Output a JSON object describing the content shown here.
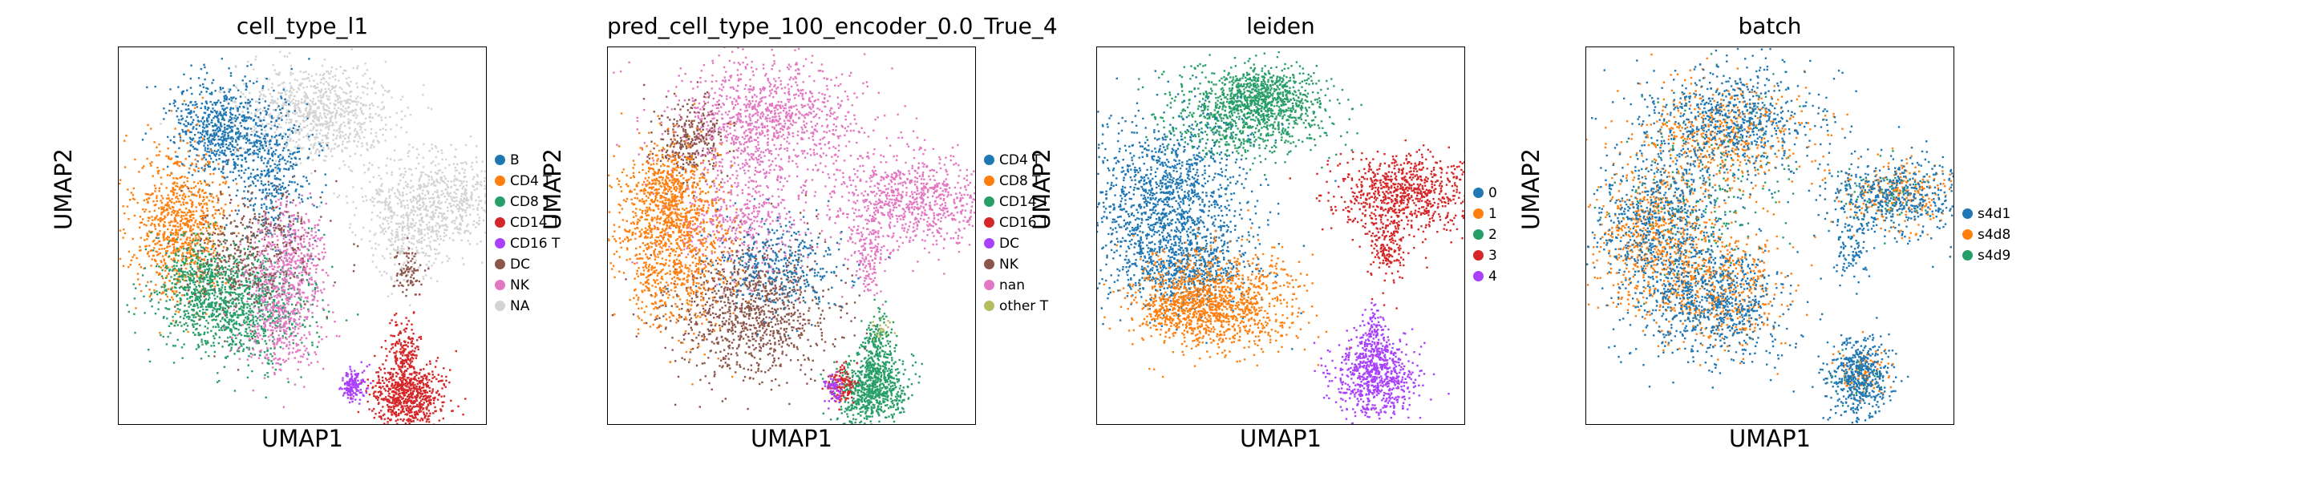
{
  "chart_data": [
    {
      "type": "scatter",
      "title": "cell_type_l1",
      "xlabel": "UMAP1",
      "ylabel": "UMAP2",
      "grid": false,
      "legend_placement": "right",
      "legend": [
        {
          "label": "B",
          "color": "#1f77b4"
        },
        {
          "label": "CD4 T",
          "color": "#ff7f0e"
        },
        {
          "label": "CD8 T",
          "color": "#279e68"
        },
        {
          "label": "CD14 T",
          "color": "#d62728"
        },
        {
          "label": "CD16 T",
          "color": "#aa40fc"
        },
        {
          "label": "DC",
          "color": "#8c564b"
        },
        {
          "label": "NK",
          "color": "#e377c2"
        },
        {
          "label": "NA",
          "color": "#d3d3d3"
        }
      ]
    },
    {
      "type": "scatter",
      "title": "pred_cell_type_100_encoder_0.0_True_4",
      "xlabel": "UMAP1",
      "ylabel": "UMAP2",
      "grid": false,
      "legend_placement": "right",
      "legend": [
        {
          "label": "CD4 T",
          "color": "#1f77b4"
        },
        {
          "label": "CD8 T",
          "color": "#ff7f0e"
        },
        {
          "label": "CD14 T",
          "color": "#279e68"
        },
        {
          "label": "CD16 T",
          "color": "#d62728"
        },
        {
          "label": "DC",
          "color": "#aa40fc"
        },
        {
          "label": "NK",
          "color": "#8c564b"
        },
        {
          "label": "nan",
          "color": "#e377c2"
        },
        {
          "label": "other T",
          "color": "#b5bd61"
        }
      ]
    },
    {
      "type": "scatter",
      "title": "leiden",
      "xlabel": "UMAP1",
      "ylabel": "UMAP2",
      "grid": false,
      "legend_placement": "right",
      "legend": [
        {
          "label": "0",
          "color": "#1f77b4"
        },
        {
          "label": "1",
          "color": "#ff7f0e"
        },
        {
          "label": "2",
          "color": "#279e68"
        },
        {
          "label": "3",
          "color": "#d62728"
        },
        {
          "label": "4",
          "color": "#aa40fc"
        }
      ]
    },
    {
      "type": "scatter",
      "title": "batch",
      "xlabel": "UMAP1",
      "ylabel": "UMAP2",
      "grid": false,
      "legend_placement": "right",
      "legend": [
        {
          "label": "s4d1",
          "color": "#1f77b4"
        },
        {
          "label": "s4d8",
          "color": "#ff7f0e"
        },
        {
          "label": "s4d9",
          "color": "#279e68"
        }
      ]
    }
  ]
}
